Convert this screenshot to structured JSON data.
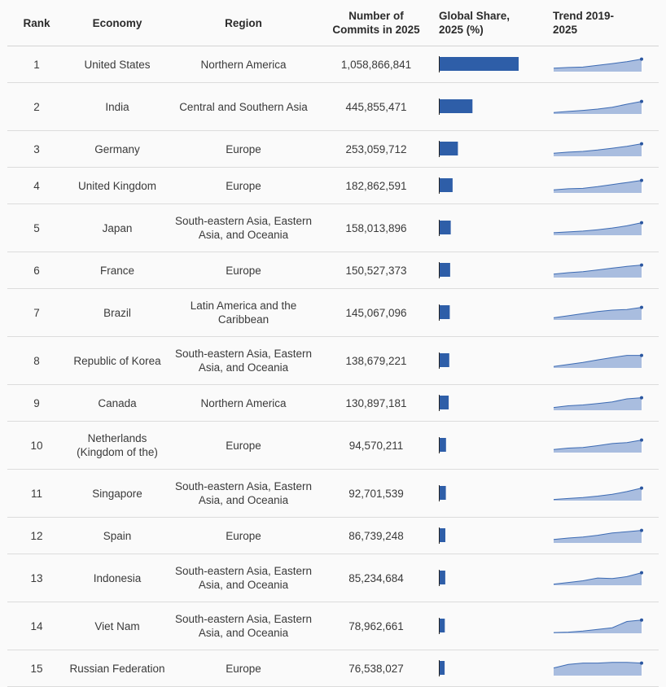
{
  "chart_data": {
    "type": "table",
    "columns": {
      "rank": "Rank",
      "economy": "Economy",
      "region": "Region",
      "commits": "Number of Commits in 2025",
      "share": "Global Share, 2025 (%)",
      "trend": "Trend 2019-2025"
    },
    "colors": {
      "bar": "#2e5ea8",
      "trend_fill": "#a9bddf",
      "trend_line": "#3d6bb3",
      "trend_dot": "#2a56a0"
    },
    "rows": [
      {
        "rank": "1",
        "economy": "United States",
        "region": "Northern America",
        "commits": "1,058,866,841",
        "share_value": 1058866841,
        "trend": [
          0.25,
          0.3,
          0.33,
          0.45,
          0.58,
          0.72,
          0.9
        ]
      },
      {
        "rank": "2",
        "economy": "India",
        "region": "Central and Southern Asia",
        "commits": "445,855,471",
        "share_value": 445855471,
        "trend": [
          0.1,
          0.18,
          0.26,
          0.35,
          0.48,
          0.7,
          0.9
        ]
      },
      {
        "rank": "3",
        "economy": "Germany",
        "region": "Europe",
        "commits": "253,059,712",
        "share_value": 253059712,
        "trend": [
          0.22,
          0.3,
          0.35,
          0.45,
          0.58,
          0.72,
          0.9
        ]
      },
      {
        "rank": "4",
        "economy": "United Kingdom",
        "region": "Europe",
        "commits": "182,862,591",
        "share_value": 182862591,
        "trend": [
          0.22,
          0.3,
          0.33,
          0.45,
          0.6,
          0.75,
          0.9
        ]
      },
      {
        "rank": "5",
        "economy": "Japan",
        "region": "South-eastern Asia, Eastern Asia, and Oceania",
        "commits": "158,013,896",
        "share_value": 158013896,
        "trend": [
          0.18,
          0.24,
          0.3,
          0.4,
          0.52,
          0.68,
          0.9
        ]
      },
      {
        "rank": "6",
        "economy": "France",
        "region": "Europe",
        "commits": "150,527,373",
        "share_value": 150527373,
        "trend": [
          0.25,
          0.35,
          0.42,
          0.55,
          0.68,
          0.8,
          0.9
        ]
      },
      {
        "rank": "7",
        "economy": "Brazil",
        "region": "Latin America and the Caribbean",
        "commits": "145,067,096",
        "share_value": 145067096,
        "trend": [
          0.15,
          0.3,
          0.45,
          0.6,
          0.7,
          0.75,
          0.9
        ]
      },
      {
        "rank": "8",
        "economy": "Republic of Korea",
        "region": "South-eastern Asia, Eastern Asia, and Oceania",
        "commits": "138,679,221",
        "share_value": 138679221,
        "trend": [
          0.1,
          0.25,
          0.4,
          0.58,
          0.75,
          0.9,
          0.9
        ]
      },
      {
        "rank": "9",
        "economy": "Canada",
        "region": "Northern America",
        "commits": "130,897,181",
        "share_value": 130897181,
        "trend": [
          0.2,
          0.32,
          0.38,
          0.48,
          0.6,
          0.82,
          0.9
        ]
      },
      {
        "rank": "10",
        "economy": "Netherlands (Kingdom of the)",
        "region": "Europe",
        "commits": "94,570,211",
        "share_value": 94570211,
        "trend": [
          0.22,
          0.32,
          0.36,
          0.5,
          0.65,
          0.72,
          0.9
        ]
      },
      {
        "rank": "11",
        "economy": "Singapore",
        "region": "South-eastern Asia, Eastern Asia, and Oceania",
        "commits": "92,701,539",
        "share_value": 92701539,
        "trend": [
          0.08,
          0.15,
          0.22,
          0.32,
          0.45,
          0.65,
          0.9
        ]
      },
      {
        "rank": "12",
        "economy": "Spain",
        "region": "Europe",
        "commits": "86,739,248",
        "share_value": 86739248,
        "trend": [
          0.25,
          0.35,
          0.42,
          0.55,
          0.72,
          0.8,
          0.9
        ]
      },
      {
        "rank": "13",
        "economy": "Indonesia",
        "region": "South-eastern Asia, Eastern Asia, and Oceania",
        "commits": "85,234,684",
        "share_value": 85234684,
        "trend": [
          0.08,
          0.2,
          0.32,
          0.52,
          0.48,
          0.62,
          0.9
        ]
      },
      {
        "rank": "14",
        "economy": "Viet Nam",
        "region": "South-eastern Asia, Eastern Asia, and Oceania",
        "commits": "78,962,661",
        "share_value": 78962661,
        "trend": [
          0.05,
          0.08,
          0.16,
          0.28,
          0.4,
          0.85,
          0.95
        ]
      },
      {
        "rank": "15",
        "economy": "Russian Federation",
        "region": "Europe",
        "commits": "76,538,027",
        "share_value": 76538027,
        "trend": [
          0.55,
          0.8,
          0.9,
          0.9,
          0.95,
          0.95,
          0.9
        ]
      }
    ]
  }
}
